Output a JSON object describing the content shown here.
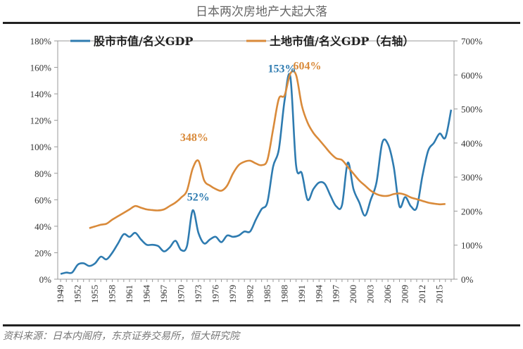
{
  "title": "日本两次房地产大起大落",
  "source": "资料来源：日本内阁府，东京证券交易所，恒大研究院",
  "chart_data": {
    "type": "line",
    "title": "日本两次房地产大起大落",
    "legend_position": "top",
    "grid": false,
    "y_left": {
      "range": [
        0,
        180
      ],
      "ticks": [
        0,
        20,
        40,
        60,
        80,
        100,
        120,
        140,
        160,
        180
      ],
      "format": "%"
    },
    "y_right": {
      "range": [
        0,
        700
      ],
      "ticks": [
        0,
        100,
        200,
        300,
        400,
        500,
        600,
        700
      ],
      "format": "%"
    },
    "x_range": [
      1949,
      2017
    ],
    "x_tick_labels": [
      "1949",
      "1952",
      "1955",
      "1958",
      "1961",
      "1964",
      "1967",
      "1970",
      "1973",
      "1976",
      "1979",
      "1982",
      "1985",
      "1988",
      "1991",
      "1994",
      "1997",
      "2000",
      "2003",
      "2006",
      "2009",
      "2012",
      "2015"
    ],
    "series": [
      {
        "name": "股市市值/名义GDP",
        "axis": "left",
        "color": "#2e7bb0",
        "start_year": 1949,
        "values": [
          4,
          5,
          5,
          11,
          12,
          10,
          12,
          17,
          15,
          20,
          27,
          34,
          32,
          35,
          30,
          26,
          26,
          25,
          21,
          24,
          29,
          22,
          25,
          52,
          35,
          27,
          30,
          32,
          28,
          33,
          32,
          33,
          36,
          36,
          45,
          53,
          58,
          85,
          98,
          135,
          153,
          86,
          80,
          60,
          68,
          73,
          72,
          63,
          55,
          56,
          88,
          68,
          58,
          48,
          60,
          73,
          103,
          102,
          85,
          55,
          62,
          55,
          54,
          78,
          97,
          103,
          110,
          107,
          128
        ]
      },
      {
        "name": "土地市值/名义GDP（右轴）",
        "axis": "right",
        "color": "#d98a3a",
        "start_year": 1954,
        "values": [
          150,
          155,
          160,
          163,
          175,
          185,
          195,
          205,
          215,
          210,
          205,
          203,
          202,
          205,
          215,
          225,
          240,
          260,
          325,
          348,
          290,
          275,
          265,
          260,
          275,
          310,
          335,
          345,
          348,
          340,
          335,
          350,
          440,
          530,
          540,
          604,
          600,
          510,
          460,
          430,
          410,
          390,
          370,
          355,
          350,
          330,
          310,
          290,
          275,
          260,
          250,
          245,
          245,
          250,
          252,
          248,
          240,
          235,
          230,
          225,
          222,
          220,
          221
        ]
      }
    ],
    "annotations": [
      {
        "text": "348%",
        "series": 1,
        "year": 1973,
        "color": "#d98a3a"
      },
      {
        "text": "52%",
        "series": 0,
        "year": 1972,
        "color": "#2e7bb0"
      },
      {
        "text": "153%",
        "series": 0,
        "year": 1989,
        "color": "#2e7bb0"
      },
      {
        "text": "604%",
        "series": 1,
        "year": 1989,
        "color": "#d98a3a"
      }
    ]
  }
}
